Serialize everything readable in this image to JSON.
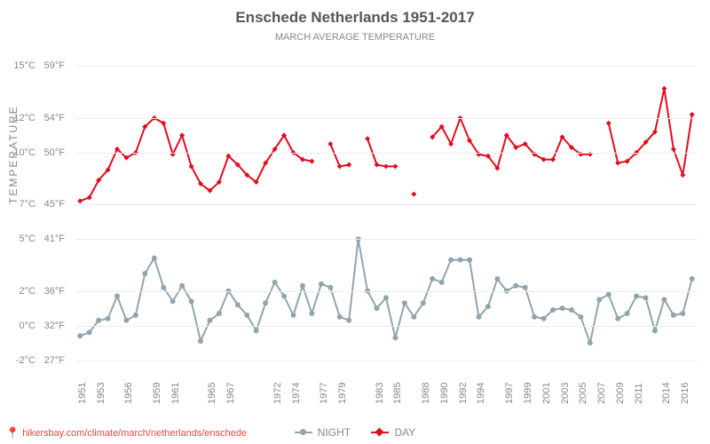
{
  "chart": {
    "title": "Enschede Netherlands 1951-2017",
    "subtitle": "MARCH AVERAGE TEMPERATURE",
    "ylabel": "Temperature",
    "title_fontsize": 17,
    "subtitle_fontsize": 11,
    "title_color": "#555555",
    "subtitle_color": "#888888",
    "background_color": "#ffffff",
    "grid_color": "#ececec",
    "text_color": "#888888",
    "ylim_c": [
      -3,
      16
    ],
    "yticks": [
      {
        "c": "-2°C",
        "f": "27°F",
        "val": -2
      },
      {
        "c": "0°C",
        "f": "32°F",
        "val": 0
      },
      {
        "c": "2°C",
        "f": "36°F",
        "val": 2
      },
      {
        "c": "5°C",
        "f": "41°F",
        "val": 5
      },
      {
        "c": "7°C",
        "f": "45°F",
        "val": 7
      },
      {
        "c": "10°C",
        "f": "50°F",
        "val": 10
      },
      {
        "c": "12°C",
        "f": "54°F",
        "val": 12
      },
      {
        "c": "15°C",
        "f": "59°F",
        "val": 15
      }
    ],
    "xlim": [
      1950.5,
      2017.5
    ],
    "xticks": [
      1951,
      1953,
      1956,
      1959,
      1961,
      1965,
      1967,
      1972,
      1974,
      1977,
      1979,
      1983,
      1985,
      1988,
      1990,
      1992,
      1994,
      1997,
      1999,
      2001,
      2003,
      2005,
      2007,
      2009,
      2011,
      2014,
      2016
    ],
    "series": {
      "day": {
        "label": "DAY",
        "color": "#e30b1d",
        "marker": "diamond",
        "line_width": 2,
        "marker_size": 6,
        "segments": [
          [
            [
              1951,
              7.2
            ],
            [
              1952,
              7.4
            ],
            [
              1953,
              8.4
            ],
            [
              1954,
              9.0
            ],
            [
              1955,
              10.2
            ],
            [
              1956,
              9.7
            ],
            [
              1957,
              10.0
            ],
            [
              1958,
              11.5
            ],
            [
              1959,
              12.0
            ],
            [
              1960,
              11.7
            ],
            [
              1961,
              9.9
            ],
            [
              1962,
              11.0
            ],
            [
              1963,
              9.2
            ],
            [
              1964,
              8.2
            ],
            [
              1965,
              7.8
            ],
            [
              1966,
              8.3
            ],
            [
              1967,
              9.8
            ],
            [
              1968,
              9.3
            ],
            [
              1969,
              8.7
            ],
            [
              1970,
              8.3
            ],
            [
              1971,
              9.4
            ],
            [
              1972,
              10.2
            ],
            [
              1973,
              11.0
            ],
            [
              1974,
              10.0
            ],
            [
              1975,
              9.6
            ],
            [
              1976,
              9.5
            ]
          ],
          [
            [
              1978,
              10.5
            ],
            [
              1979,
              9.2
            ],
            [
              1980,
              9.3
            ]
          ],
          [
            [
              1982,
              10.8
            ],
            [
              1983,
              9.3
            ],
            [
              1984,
              9.2
            ],
            [
              1985,
              9.2
            ]
          ],
          [
            [
              1987,
              7.6
            ]
          ],
          [
            [
              1989,
              10.9
            ],
            [
              1990,
              11.5
            ],
            [
              1991,
              10.5
            ],
            [
              1992,
              12.0
            ],
            [
              1993,
              10.7
            ],
            [
              1994,
              9.9
            ],
            [
              1995,
              9.8
            ],
            [
              1996,
              9.1
            ],
            [
              1997,
              11.0
            ],
            [
              1998,
              10.3
            ],
            [
              1999,
              10.5
            ],
            [
              2000,
              9.9
            ],
            [
              2001,
              9.6
            ],
            [
              2002,
              9.6
            ],
            [
              2003,
              10.9
            ],
            [
              2004,
              10.3
            ],
            [
              2005,
              9.9
            ],
            [
              2006,
              9.9
            ]
          ],
          [
            [
              2008,
              11.7
            ],
            [
              2009,
              9.4
            ],
            [
              2010,
              9.5
            ],
            [
              2011,
              10.0
            ],
            [
              2012,
              10.6
            ],
            [
              2013,
              11.2
            ],
            [
              2014,
              13.7
            ],
            [
              2015,
              10.2
            ],
            [
              2016,
              8.7
            ],
            [
              2017,
              12.2
            ]
          ]
        ]
      },
      "night": {
        "label": "NIGHT",
        "color": "#90a5ae",
        "marker": "circle",
        "line_width": 2,
        "marker_size": 6,
        "segments": [
          [
            [
              1951,
              -0.6
            ],
            [
              1952,
              -0.4
            ],
            [
              1953,
              0.3
            ],
            [
              1954,
              0.4
            ],
            [
              1955,
              1.7
            ],
            [
              1956,
              0.3
            ],
            [
              1957,
              0.6
            ],
            [
              1958,
              3.0
            ],
            [
              1959,
              3.9
            ],
            [
              1960,
              2.2
            ],
            [
              1961,
              1.4
            ],
            [
              1962,
              2.3
            ],
            [
              1963,
              1.4
            ],
            [
              1964,
              -0.9
            ],
            [
              1965,
              0.3
            ],
            [
              1966,
              0.7
            ],
            [
              1967,
              2.0
            ],
            [
              1968,
              1.2
            ],
            [
              1969,
              0.6
            ],
            [
              1970,
              -0.3
            ],
            [
              1971,
              1.3
            ],
            [
              1972,
              2.5
            ],
            [
              1973,
              1.7
            ],
            [
              1974,
              0.6
            ],
            [
              1975,
              2.3
            ],
            [
              1976,
              0.7
            ],
            [
              1977,
              2.4
            ],
            [
              1978,
              2.2
            ],
            [
              1979,
              0.5
            ],
            [
              1980,
              0.3
            ],
            [
              1981,
              5.0
            ],
            [
              1982,
              2.0
            ],
            [
              1983,
              1.0
            ],
            [
              1984,
              1.6
            ],
            [
              1985,
              -0.7
            ],
            [
              1986,
              1.3
            ],
            [
              1987,
              0.5
            ],
            [
              1988,
              1.3
            ],
            [
              1989,
              2.7
            ],
            [
              1990,
              2.5
            ],
            [
              1991,
              3.8
            ],
            [
              1992,
              3.8
            ],
            [
              1993,
              3.8
            ],
            [
              1994,
              0.5
            ],
            [
              1995,
              1.1
            ],
            [
              1996,
              2.7
            ],
            [
              1997,
              2.0
            ],
            [
              1998,
              2.3
            ],
            [
              1999,
              2.2
            ],
            [
              2000,
              0.5
            ],
            [
              2001,
              0.4
            ],
            [
              2002,
              0.9
            ],
            [
              2003,
              1.0
            ],
            [
              2004,
              0.9
            ],
            [
              2005,
              0.5
            ],
            [
              2006,
              -1.0
            ],
            [
              2007,
              1.5
            ],
            [
              2008,
              1.8
            ],
            [
              2009,
              0.4
            ],
            [
              2010,
              0.7
            ],
            [
              2011,
              1.7
            ],
            [
              2012,
              1.6
            ],
            [
              2013,
              -0.3
            ],
            [
              2014,
              1.5
            ],
            [
              2015,
              0.6
            ],
            [
              2016,
              0.7
            ],
            [
              2017,
              2.7
            ]
          ]
        ]
      }
    },
    "legend_position": "bottom-center",
    "footer_url": "hikersbay.com/climate/march/netherlands/enschede",
    "footer_color": "#e74c3c"
  }
}
